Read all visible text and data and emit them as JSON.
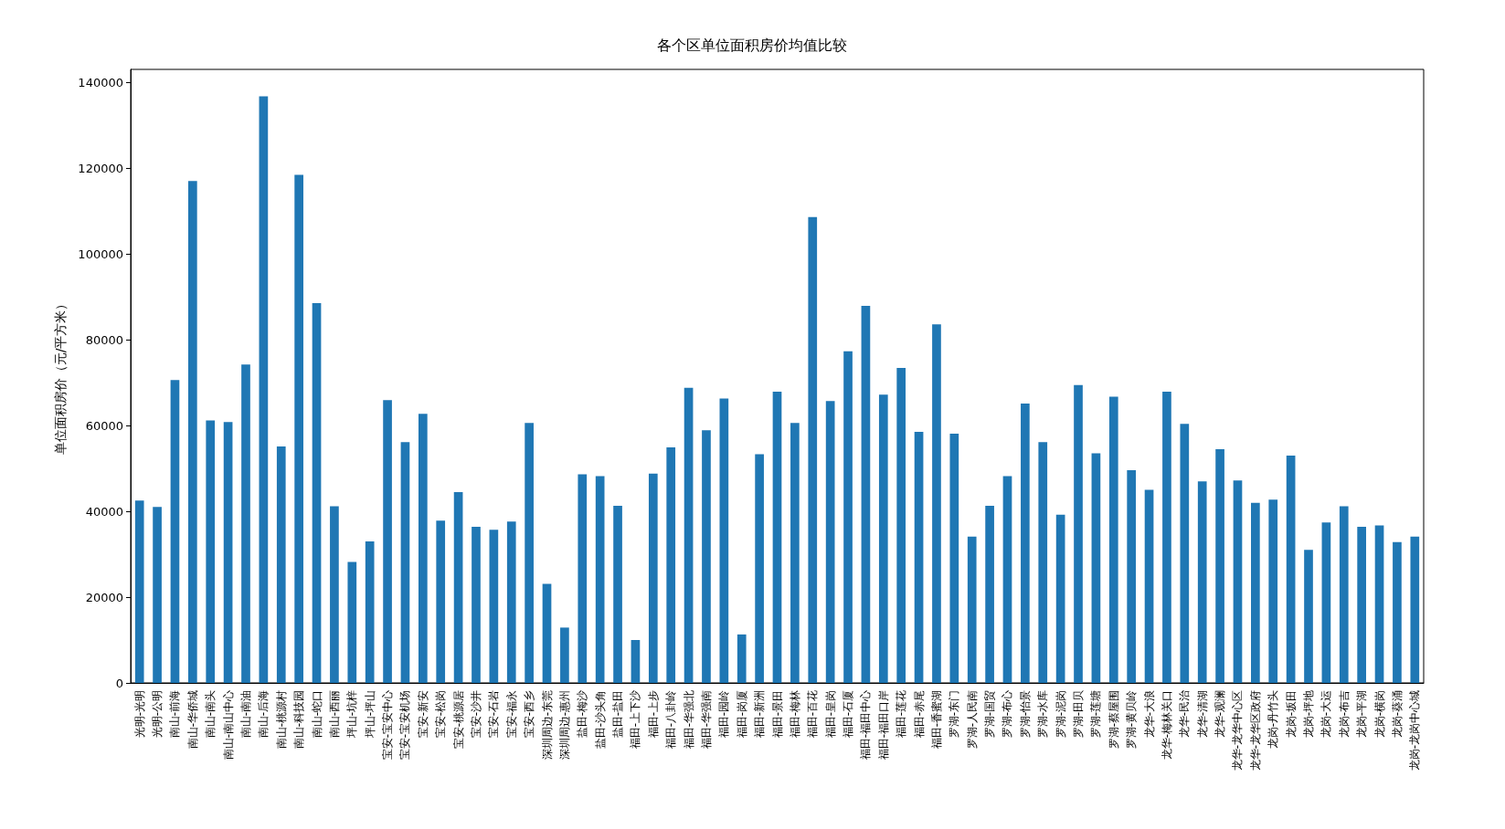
{
  "chart_data": {
    "type": "bar",
    "title": "各个区单位面积房价均值比较",
    "ylabel": "单位面积房价（元/平方米）",
    "color": "#1f77b4",
    "categories": [
      "光明-光明",
      "光明-公明",
      "南山-前海",
      "南山-华侨城",
      "南山-南头",
      "南山-南山中心",
      "南山-南油",
      "南山-后海",
      "南山-桃源村",
      "南山-科技园",
      "南山-蛇口",
      "南山-西丽",
      "坪山-坑梓",
      "坪山-坪山",
      "宝安-宝安中心",
      "宝安-宝安机场",
      "宝安-新安",
      "宝安-松岗",
      "宝安-桃源居",
      "宝安-沙井",
      "宝安-石岩",
      "宝安-福永",
      "宝安-西乡",
      "深圳周边-东莞",
      "深圳周边-惠州",
      "盐田-梅沙",
      "盐田-沙头角",
      "盐田-盐田",
      "福田-上下沙",
      "福田-上步",
      "福田-八卦岭",
      "福田-华强北",
      "福田-华强南",
      "福田-园岭",
      "福田-岗厦",
      "福田-新洲",
      "福田-景田",
      "福田-梅林",
      "福田-百花",
      "福田-皇岗",
      "福田-石厦",
      "福田-福田中心",
      "福田-福田口岸",
      "福田-莲花",
      "福田-赤尾",
      "福田-香蜜湖",
      "罗湖-东门",
      "罗湖-人民南",
      "罗湖-国贸",
      "罗湖-布心",
      "罗湖-怡景",
      "罗湖-水库",
      "罗湖-泥岗",
      "罗湖-田贝",
      "罗湖-莲塘",
      "罗湖-蔡屋围",
      "罗湖-黄贝岭",
      "龙华-大浪",
      "龙华-梅林关口",
      "龙华-民治",
      "龙华-清湖",
      "龙华-观澜",
      "龙华-龙华中心区",
      "龙华-龙华区政府",
      "龙岗-丹竹头",
      "龙岗-坂田",
      "龙岗-坪地",
      "龙岗-大运",
      "龙岗-布吉",
      "龙岗-平湖",
      "龙岗-横岗",
      "龙岗-葵涌",
      "龙岗-龙岗中心城"
    ],
    "values": [
      42500,
      41000,
      70600,
      117000,
      61200,
      60800,
      74200,
      136700,
      55100,
      118400,
      88500,
      41200,
      28200,
      33000,
      65900,
      56100,
      62700,
      37800,
      44500,
      36400,
      35700,
      37600,
      60600,
      23100,
      12900,
      48600,
      48200,
      41300,
      10000,
      48800,
      54900,
      68800,
      58900,
      66300,
      11300,
      53300,
      67900,
      60600,
      108600,
      65700,
      77300,
      87900,
      67200,
      73400,
      58500,
      83600,
      58100,
      34100,
      41300,
      48200,
      65100,
      56100,
      39200,
      69400,
      53500,
      66700,
      49600,
      45000,
      67900,
      60400,
      47000,
      54500,
      47200,
      42000,
      42700,
      53000,
      31000,
      37400,
      41200,
      36400,
      36700,
      32800,
      34100
    ],
    "ylim": [
      0,
      143000
    ],
    "yticks": [
      0,
      20000,
      40000,
      60000,
      80000,
      100000,
      120000,
      140000
    ],
    "grid": false
  }
}
